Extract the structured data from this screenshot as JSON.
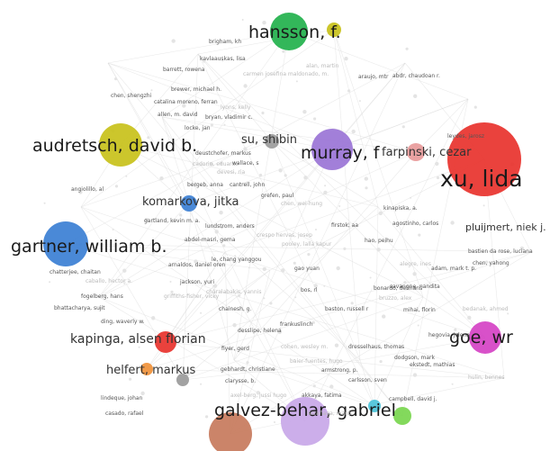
{
  "network": {
    "colors": {
      "green": "#22b14c",
      "yellow": "#c8c11a",
      "purple": "#9a74d6",
      "red": "#e8322c",
      "blue": "#3b7fd4",
      "magenta": "#d542c4",
      "orange": "#f0913a",
      "grey": "#9a9a9a",
      "lightgreen": "#78d64e",
      "brown": "#c77a5c",
      "lavender": "#c8a7e8",
      "cyan": "#4cc3d9",
      "pink": "#e89a9a",
      "link": "#d9d9d9"
    },
    "major_labels": {
      "hansson": "hansson, f.",
      "audretsch": "audretsch, david b.",
      "murray": "murray, f",
      "xu": "xu, lida",
      "gartner": "gartner, william b.",
      "kapinga": "kapinga, alsen florian",
      "goe": "goe, wr",
      "galvez": "galvez-behar, gabriel"
    },
    "mid_labels": {
      "su": "su, shibin",
      "farpinski": "farpinski, cezar",
      "komarkova": "komarkova, jitka",
      "pluijmert": "pluijmert, niek j.",
      "helfert": "helfert, markus"
    },
    "small_labels": [
      "brigham, kh",
      "kavlaauskas, lisa",
      "barrett, rowena",
      "carmen josefina maldonado, m.",
      "chen, shengzhi",
      "brewer, michael h.",
      "catalina moreno, ferran",
      "lyons, kelly",
      "allen, m. david",
      "bryan, vladimir c.",
      "locke, jan",
      "alan, martin",
      "araujo, mtr",
      "abdr, chaudoan r.",
      "leydes, jarosz",
      "cadorin, eduardo",
      "wallace, s",
      "deustchofer, markus",
      "cantrell, john",
      "devesi, ria",
      "bergeb, anna",
      "angiolillo, al",
      "grefen, paul",
      "chen, wei-hung",
      "gartland, kevin m. a.",
      "lundstrom, anders",
      "kinapiska, a.",
      "crespo hervas, josep",
      "firstok, aa",
      "agostinho, carlos",
      "abdel-masri, gema",
      "pooley, lalla kapur",
      "hao, peihu",
      "bastien da rose, luciana",
      "le, chang yanggou",
      "alegre, ines",
      "arnaldos, daniel oren",
      "gao yuan",
      "chatterjee, chaitan",
      "caballo, hector a.",
      "jackson, yuri",
      "chen, yahong",
      "bos, rl",
      "charalabakis, yannis",
      "savangne, nandita",
      "adam, mark t. p.",
      "fogelberg, hans",
      "griffiths-fisher, vicky",
      "bonardo, delmans",
      "bhattacharya, sujit",
      "ding, waverly w.",
      "bruzzo, alex",
      "chainesh, g.",
      "baston, russell r",
      "mihai, florin",
      "bedanak, ahmed",
      "desslipe, helena",
      "frankuslinch",
      "hegovia, jelena",
      "cohen, wesley m.",
      "dresselhaus, thomas",
      "fiyer, gerd",
      "dodgson, mark",
      "baier-fuentes, hugo",
      "ekstedt, mathias",
      "gebhardt, christiane",
      "armstrong, p.",
      "hulin, bennes",
      "clarysse, b.",
      "carlsson, sven",
      "lindeque, johan",
      "axel-berg, jussi hugo",
      "akkaya, fatima",
      "campbell, david j.",
      "casado, rafael",
      "larrañaga, mano"
    ]
  }
}
